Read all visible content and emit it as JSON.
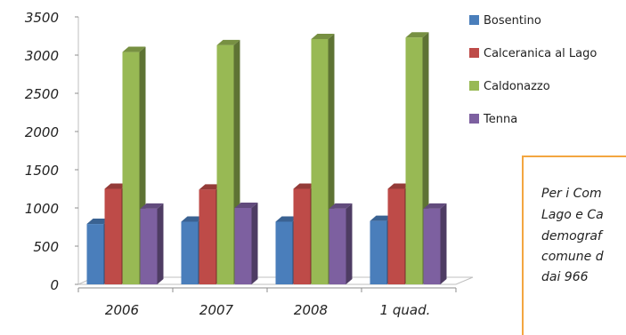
{
  "chart_data": {
    "type": "bar",
    "categories": [
      "2006",
      "2007",
      "2008",
      "1 quad."
    ],
    "series": [
      {
        "name": "Bosentino",
        "values": [
          790,
          820,
          820,
          830
        ],
        "color": "#4a7ebb"
      },
      {
        "name": "Calceranica al Lago",
        "values": [
          1250,
          1240,
          1250,
          1250
        ],
        "color": "#be4b48"
      },
      {
        "name": "Caldonazzo",
        "values": [
          3040,
          3130,
          3210,
          3230
        ],
        "color": "#98b954"
      },
      {
        "name": "Tenna",
        "values": [
          990,
          1000,
          990,
          990
        ],
        "color": "#7d60a0"
      }
    ],
    "ylim": [
      0,
      3500
    ],
    "yticks": [
      "3500",
      "3000",
      "2500",
      "2000",
      "1500",
      "1000",
      "500",
      "0"
    ],
    "legend_position": "right"
  },
  "note": {
    "lines": [
      "Per i Com",
      "Lago e Ca",
      "demograf",
      "comune d",
      "dai 966"
    ]
  }
}
